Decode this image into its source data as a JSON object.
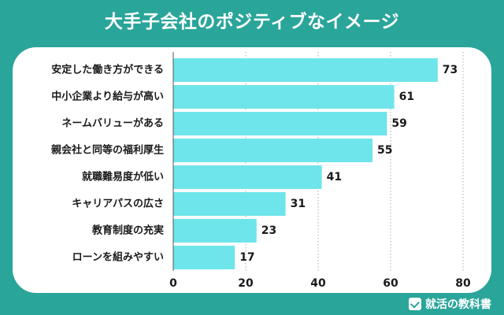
{
  "title": "大手子会社のポジティブなイメージ",
  "brand": {
    "name": "就活の教科書",
    "icon": "checkmark-book-icon"
  },
  "colors": {
    "background": "#2aa59a",
    "bar": "#6ee5ea",
    "panel": "#ffffff",
    "grid": "#aaaaaa"
  },
  "chart_data": {
    "type": "bar",
    "orientation": "horizontal",
    "title": "大手子会社のポジティブなイメージ",
    "categories": [
      "安定した働き方ができる",
      "中小企業より給与が高い",
      "ネームバリューがある",
      "親会社と同等の福利厚生",
      "就職難易度が低い",
      "キャリアパスの広さ",
      "教育制度の充実",
      "ローンを組みやすい"
    ],
    "values": [
      73,
      61,
      59,
      55,
      41,
      31,
      23,
      17
    ],
    "xlim": [
      0,
      80
    ],
    "xticks": [
      0,
      20,
      40,
      60,
      80
    ],
    "grid": true,
    "legend": "none"
  }
}
